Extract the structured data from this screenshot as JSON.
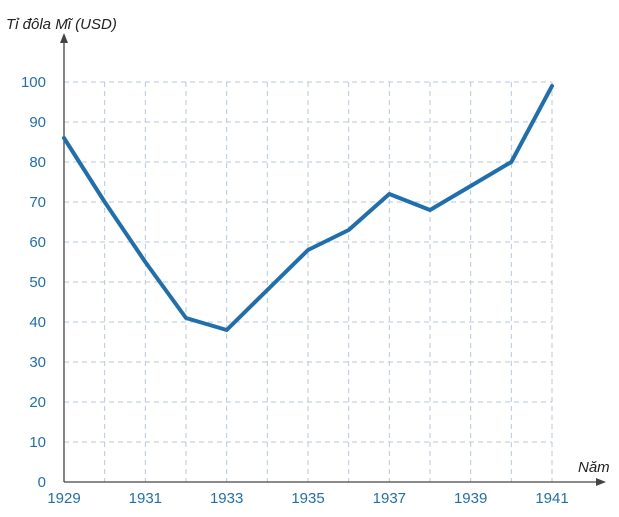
{
  "chart_data": {
    "type": "line",
    "ylabel": "Tỉ đôla Mĩ (USD)",
    "xlabel": "Năm",
    "x": [
      1929,
      1930,
      1931,
      1932,
      1933,
      1934,
      1935,
      1936,
      1937,
      1938,
      1939,
      1940,
      1941
    ],
    "series": [
      {
        "values": [
          86,
          70,
          55,
          41,
          38,
          48,
          58,
          63,
          72,
          68,
          74,
          80,
          99
        ]
      }
    ],
    "xticks": [
      "1929",
      "1931",
      "1933",
      "1935",
      "1937",
      "1939",
      "1941"
    ],
    "yticks": [
      "0",
      "10",
      "20",
      "30",
      "40",
      "50",
      "60",
      "70",
      "80",
      "90",
      "100"
    ],
    "xlim": [
      1929,
      1941
    ],
    "ylim": [
      0,
      100
    ],
    "grid": true,
    "colors": {
      "line": "#1f6fae",
      "tick_text": "#1f6fae",
      "grid": "#b8c6e0",
      "axis": "#444444"
    }
  }
}
